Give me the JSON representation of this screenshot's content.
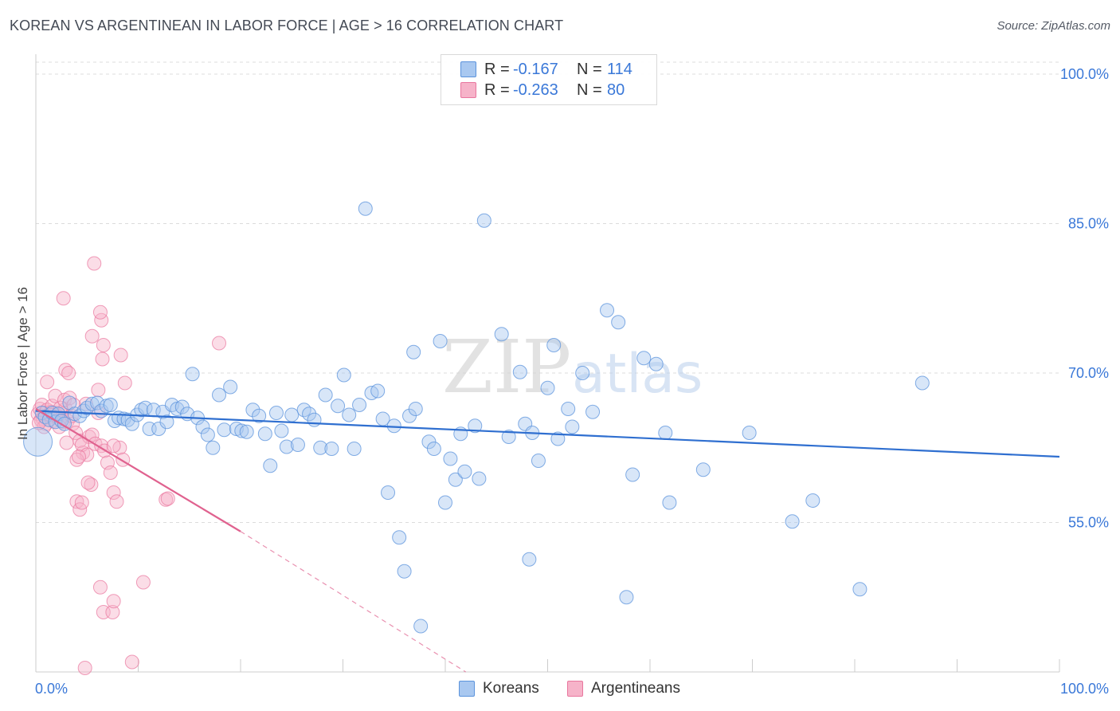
{
  "header": {
    "title": "KOREAN VS ARGENTINEAN IN LABOR FORCE | AGE > 16 CORRELATION CHART",
    "source": "Source: ZipAtlas.com"
  },
  "watermark": {
    "zip": "ZIP",
    "atlas": "atlas"
  },
  "legend": {
    "rows": [
      {
        "r_label": "R =",
        "r": "-0.167",
        "n_label": "N =",
        "n": "114"
      },
      {
        "r_label": "R =",
        "r": "-0.263",
        "n_label": "N =",
        "n": "80"
      }
    ]
  },
  "bottom_legend": {
    "koreans": "Koreans",
    "argentineans": "Argentineans"
  },
  "colors": {
    "koreans_fill": "#a9c8f0",
    "koreans_stroke": "#5b93dc",
    "koreans_line": "#2f6fd0",
    "argentineans_fill": "#f6b3c9",
    "argentineans_stroke": "#e9769e",
    "argentineans_line": "#e0628f",
    "axis_label_color": "#3a78d8",
    "grid": "#dcdcdc"
  },
  "chart_data": {
    "type": "scatter",
    "title": "KOREAN VS ARGENTINEAN IN LABOR FORCE | AGE > 16 CORRELATION CHART",
    "xlabel": "",
    "ylabel": "In Labor Force | Age > 16",
    "xlim": [
      0,
      100
    ],
    "ylim": [
      40,
      102
    ],
    "x_tick_labels": [
      "0.0%",
      "100.0%"
    ],
    "y_ticks": [
      55,
      70,
      85,
      100
    ],
    "y_tick_labels": [
      "55.0%",
      "70.0%",
      "85.0%",
      "100.0%"
    ],
    "grid": true,
    "legend_position": "top-center",
    "series": [
      {
        "name": "Koreans",
        "trendline": {
          "x": [
            0,
            100
          ],
          "y": [
            66.2,
            61.6
          ]
        },
        "points": [
          [
            0.2,
            63.1,
            "big"
          ],
          [
            0.6,
            66.0
          ],
          [
            0.9,
            65.6
          ],
          [
            1.3,
            65.3
          ],
          [
            1.6,
            66.0
          ],
          [
            1.9,
            65.1
          ],
          [
            2.2,
            65.9
          ],
          [
            2.5,
            65.2
          ],
          [
            2.8,
            64.9
          ],
          [
            3.3,
            67.0
          ],
          [
            3.8,
            65.9
          ],
          [
            4.3,
            65.7
          ],
          [
            4.7,
            66.2
          ],
          [
            5.0,
            66.5
          ],
          [
            5.5,
            66.9
          ],
          [
            6.0,
            67.0
          ],
          [
            6.4,
            66.2
          ],
          [
            6.9,
            66.7
          ],
          [
            7.3,
            66.8
          ],
          [
            7.7,
            65.2
          ],
          [
            8.1,
            65.5
          ],
          [
            8.6,
            65.4
          ],
          [
            9.0,
            65.3
          ],
          [
            9.4,
            64.9
          ],
          [
            9.9,
            65.8
          ],
          [
            10.3,
            66.3
          ],
          [
            10.7,
            66.5
          ],
          [
            11.1,
            64.4
          ],
          [
            11.5,
            66.3
          ],
          [
            12.0,
            64.4
          ],
          [
            12.4,
            66.1
          ],
          [
            12.8,
            65.1
          ],
          [
            13.3,
            66.8
          ],
          [
            13.8,
            66.4
          ],
          [
            14.3,
            66.6
          ],
          [
            14.8,
            65.9
          ],
          [
            15.3,
            69.9
          ],
          [
            15.8,
            65.5
          ],
          [
            16.3,
            64.6
          ],
          [
            16.8,
            63.8
          ],
          [
            17.3,
            62.5
          ],
          [
            17.9,
            67.8
          ],
          [
            18.4,
            64.3
          ],
          [
            19.0,
            68.6
          ],
          [
            19.6,
            64.4
          ],
          [
            20.1,
            64.2
          ],
          [
            20.6,
            64.1
          ],
          [
            21.2,
            66.3
          ],
          [
            21.8,
            65.7
          ],
          [
            22.4,
            63.9
          ],
          [
            22.9,
            60.7
          ],
          [
            23.5,
            66.0
          ],
          [
            24.0,
            64.2
          ],
          [
            24.5,
            62.6
          ],
          [
            25.0,
            65.8
          ],
          [
            25.6,
            62.8
          ],
          [
            26.2,
            66.3
          ],
          [
            26.7,
            65.9
          ],
          [
            27.2,
            65.3
          ],
          [
            27.8,
            62.5
          ],
          [
            28.3,
            67.8
          ],
          [
            28.9,
            62.4
          ],
          [
            29.5,
            66.7
          ],
          [
            30.1,
            69.8
          ],
          [
            30.6,
            65.8
          ],
          [
            31.1,
            62.4
          ],
          [
            31.6,
            66.8
          ],
          [
            32.2,
            86.5
          ],
          [
            32.8,
            68.0
          ],
          [
            33.4,
            68.2
          ],
          [
            33.9,
            65.4
          ],
          [
            34.4,
            58.0
          ],
          [
            35.0,
            64.7
          ],
          [
            35.5,
            53.5
          ],
          [
            36.0,
            50.1
          ],
          [
            36.5,
            65.7
          ],
          [
            37.1,
            66.4
          ],
          [
            37.6,
            44.6
          ],
          [
            36.9,
            72.1
          ],
          [
            38.4,
            63.1
          ],
          [
            38.9,
            62.4
          ],
          [
            39.5,
            73.2
          ],
          [
            40.0,
            57.0
          ],
          [
            40.5,
            61.4
          ],
          [
            41.0,
            59.3
          ],
          [
            41.5,
            63.9
          ],
          [
            41.9,
            60.1
          ],
          [
            42.9,
            64.7
          ],
          [
            43.3,
            59.4
          ],
          [
            43.8,
            85.3
          ],
          [
            45.5,
            73.9
          ],
          [
            46.2,
            63.6
          ],
          [
            47.3,
            70.1
          ],
          [
            47.8,
            64.9
          ],
          [
            48.2,
            51.3
          ],
          [
            48.5,
            64.0
          ],
          [
            49.1,
            61.2
          ],
          [
            50.0,
            68.5
          ],
          [
            50.6,
            72.8
          ],
          [
            51.0,
            63.4
          ],
          [
            52.0,
            66.4
          ],
          [
            52.4,
            64.6
          ],
          [
            53.4,
            70.0
          ],
          [
            54.4,
            66.1
          ],
          [
            55.8,
            76.3
          ],
          [
            56.9,
            75.1
          ],
          [
            57.7,
            47.5
          ],
          [
            58.3,
            59.8
          ],
          [
            59.4,
            71.5
          ],
          [
            60.6,
            70.9
          ],
          [
            61.5,
            64.0
          ],
          [
            61.9,
            57.0
          ],
          [
            65.2,
            60.3
          ],
          [
            69.7,
            64.0
          ],
          [
            73.9,
            55.1
          ],
          [
            75.9,
            57.2
          ],
          [
            80.5,
            48.3
          ],
          [
            86.6,
            69.0
          ]
        ]
      },
      {
        "name": "Argentineans",
        "trendline": {
          "x": [
            0,
            20
          ],
          "y": [
            66.4,
            54.1
          ],
          "dashed_to": [
            42,
            40
          ]
        },
        "points": [
          [
            0.2,
            65.9
          ],
          [
            0.4,
            66.4
          ],
          [
            0.6,
            66.8
          ],
          [
            0.7,
            65.4
          ],
          [
            0.9,
            66.0
          ],
          [
            1.1,
            66.3
          ],
          [
            1.3,
            65.6
          ],
          [
            1.5,
            66.1
          ],
          [
            1.7,
            65.2
          ],
          [
            1.9,
            66.0
          ],
          [
            2.1,
            65.7
          ],
          [
            2.3,
            65.4
          ],
          [
            2.5,
            65.9
          ],
          [
            2.7,
            65.1
          ],
          [
            2.9,
            66.4
          ],
          [
            3.1,
            65.2
          ],
          [
            0.5,
            65.3
          ],
          [
            1.0,
            64.9
          ],
          [
            1.6,
            66.7
          ],
          [
            2.4,
            66.5
          ],
          [
            1.1,
            69.1
          ],
          [
            1.9,
            67.7
          ],
          [
            2.8,
            67.3
          ],
          [
            3.3,
            67.5
          ],
          [
            3.0,
            63.0
          ],
          [
            3.6,
            64.9
          ],
          [
            3.9,
            64.0
          ],
          [
            4.3,
            63.2
          ],
          [
            4.6,
            62.0
          ],
          [
            4.9,
            66.9
          ],
          [
            5.2,
            63.6
          ],
          [
            5.5,
            63.8
          ],
          [
            5.8,
            62.9
          ],
          [
            6.1,
            66.0
          ],
          [
            6.4,
            62.7
          ],
          [
            6.7,
            62.2
          ],
          [
            7.0,
            61.0
          ],
          [
            7.3,
            60.0
          ],
          [
            7.6,
            58.0
          ],
          [
            7.9,
            57.1
          ],
          [
            8.2,
            62.5
          ],
          [
            8.5,
            61.3
          ],
          [
            8.7,
            69.0
          ],
          [
            4.5,
            62.8
          ],
          [
            5.0,
            61.8
          ],
          [
            5.4,
            58.8
          ],
          [
            6.1,
            68.3
          ],
          [
            6.5,
            71.4
          ],
          [
            6.6,
            72.8
          ],
          [
            6.4,
            75.3
          ],
          [
            6.3,
            76.1
          ],
          [
            5.7,
            81.0
          ],
          [
            5.5,
            73.7
          ],
          [
            2.7,
            77.5
          ],
          [
            2.9,
            70.3
          ],
          [
            3.2,
            70.0
          ],
          [
            4.0,
            61.3
          ],
          [
            4.2,
            61.6
          ],
          [
            4.0,
            57.1
          ],
          [
            4.3,
            56.3
          ],
          [
            4.5,
            57.0
          ],
          [
            5.1,
            59.0
          ],
          [
            6.3,
            48.5
          ],
          [
            6.6,
            46.0
          ],
          [
            7.5,
            46.0
          ],
          [
            7.6,
            47.1
          ],
          [
            10.5,
            49.0
          ],
          [
            4.8,
            40.4
          ],
          [
            9.4,
            41.0
          ],
          [
            7.6,
            62.7
          ],
          [
            12.7,
            57.3
          ],
          [
            12.9,
            57.4
          ],
          [
            17.9,
            73.0
          ],
          [
            8.3,
            71.8
          ],
          [
            2.3,
            64.6
          ],
          [
            3.5,
            65.7
          ],
          [
            0.8,
            64.6
          ],
          [
            3.7,
            66.8
          ],
          [
            1.4,
            65.8
          ],
          [
            0.3,
            65.0
          ]
        ]
      }
    ]
  }
}
